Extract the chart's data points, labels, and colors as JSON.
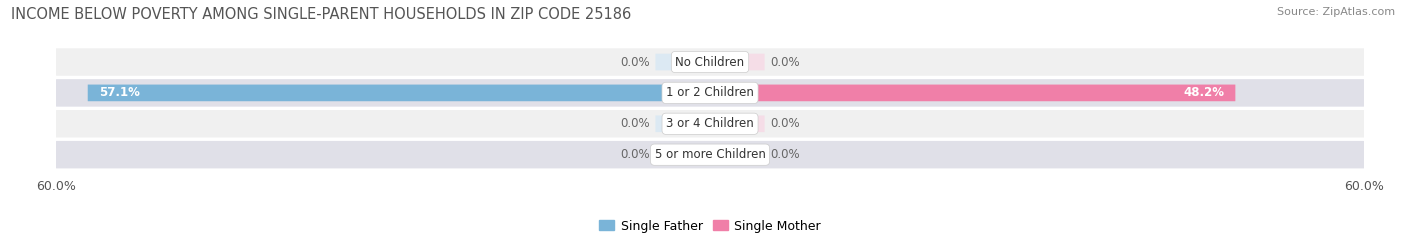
{
  "title": "INCOME BELOW POVERTY AMONG SINGLE-PARENT HOUSEHOLDS IN ZIP CODE 25186",
  "source": "Source: ZipAtlas.com",
  "categories": [
    "No Children",
    "1 or 2 Children",
    "3 or 4 Children",
    "5 or more Children"
  ],
  "single_father_values": [
    0.0,
    57.1,
    0.0,
    0.0
  ],
  "single_mother_values": [
    0.0,
    48.2,
    0.0,
    0.0
  ],
  "father_color": "#7ab4d8",
  "mother_color": "#f07fa8",
  "bar_bg_color_left": "#dce9f3",
  "bar_bg_color_right": "#f5dde7",
  "row_bg_color_light": "#f0f0f0",
  "row_bg_color_dark": "#e0e0e8",
  "axis_limit": 60.0,
  "default_bar_width": 5.0,
  "title_fontsize": 10.5,
  "source_fontsize": 8,
  "label_fontsize": 8.5,
  "category_fontsize": 8.5,
  "tick_fontsize": 9,
  "legend_fontsize": 9,
  "fig_bg_color": "#ffffff"
}
